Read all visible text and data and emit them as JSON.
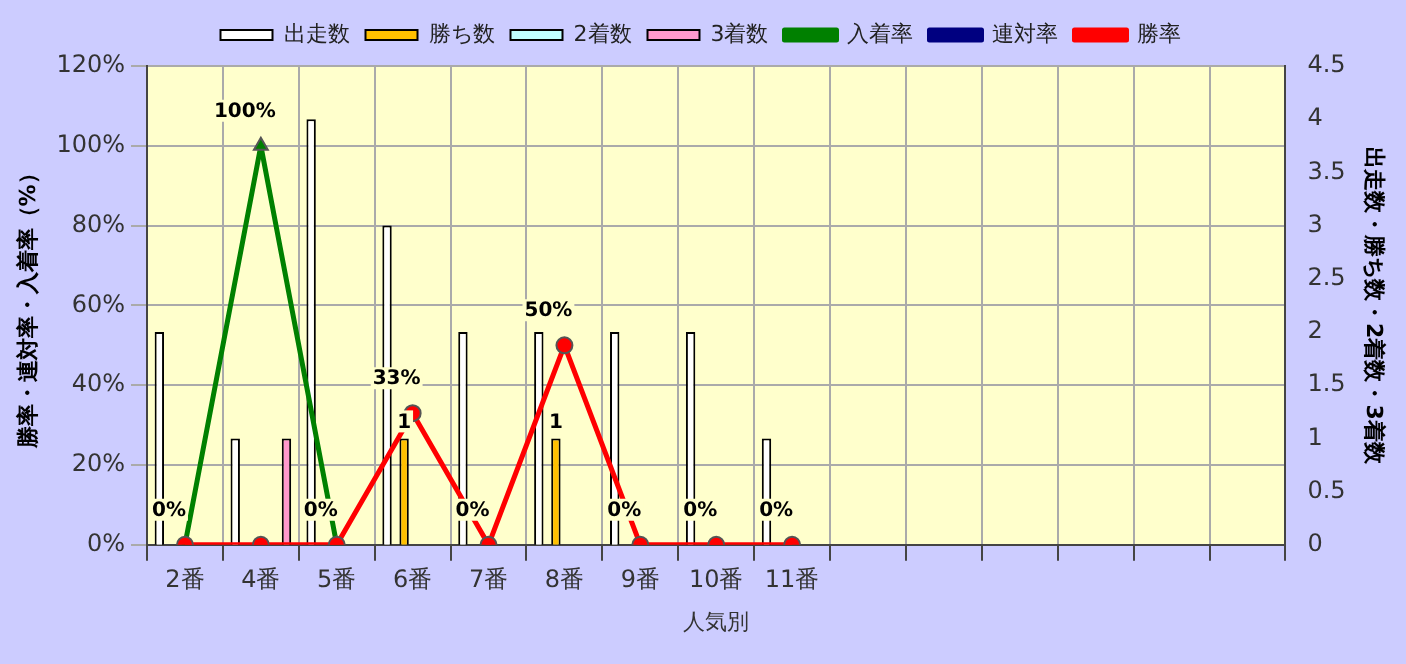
{
  "chart_data": {
    "type": "bar",
    "xlabel": "人気別",
    "ylabel": "勝率・連対率・入着率（%）",
    "y2label": "出走数・勝ち数・2着数・3着数",
    "categories": [
      "2番",
      "4番",
      "5番",
      "6番",
      "7番",
      "8番",
      "9番",
      "10番",
      "11番",
      null,
      null,
      null,
      null,
      null,
      null
    ],
    "series": [
      {
        "name": "出走数",
        "axis": "y2",
        "color": "#ffffff",
        "values": [
          2,
          1,
          4,
          3,
          2,
          2,
          2,
          2,
          1,
          null,
          null,
          null,
          null,
          null,
          null
        ]
      },
      {
        "name": "勝ち数",
        "axis": "y2",
        "color": "#ffc000",
        "values": [
          0,
          0,
          0,
          1,
          0,
          1,
          0,
          0,
          0,
          null,
          null,
          null,
          null,
          null,
          null
        ],
        "value_labels": [
          null,
          null,
          null,
          "1",
          null,
          "1",
          null,
          null,
          null,
          null,
          null,
          null,
          null,
          null,
          null
        ]
      },
      {
        "name": "2着数",
        "axis": "y2",
        "color": "#c0ffff",
        "values": [
          0,
          0,
          0,
          0,
          0,
          0,
          0,
          0,
          0,
          null,
          null,
          null,
          null,
          null,
          null
        ]
      },
      {
        "name": "3着数",
        "axis": "y2",
        "color": "#ff99cc",
        "values": [
          0,
          1,
          0,
          0,
          0,
          0,
          0,
          0,
          0,
          null,
          null,
          null,
          null,
          null,
          null
        ]
      },
      {
        "name": "入着率",
        "type": "line",
        "color": "#008000",
        "marker": "triangle",
        "values": [
          0,
          100,
          0,
          null,
          null,
          null,
          null,
          null,
          null,
          null,
          null,
          null,
          null,
          null,
          null
        ],
        "value_labels": [
          null,
          "100%",
          null,
          null,
          null,
          null,
          null,
          null,
          null,
          null,
          null,
          null,
          null,
          null,
          null
        ]
      },
      {
        "name": "連対率",
        "type": "line",
        "color": "#000080",
        "marker": "circle",
        "values": [
          null,
          null,
          null,
          null,
          null,
          null,
          null,
          null,
          null,
          null,
          null,
          null,
          null,
          null,
          null
        ]
      },
      {
        "name": "勝率",
        "type": "line",
        "color": "#ff0000",
        "marker": "circle",
        "values": [
          0,
          0,
          0,
          33,
          0,
          50,
          0,
          0,
          0,
          null,
          null,
          null,
          null,
          null,
          null
        ],
        "value_labels": [
          "0%",
          null,
          "0%",
          "33%",
          "0%",
          "50%",
          "0%",
          "0%",
          "0%",
          null,
          null,
          null,
          null,
          null,
          null
        ]
      }
    ],
    "ylim": [
      0,
      120
    ],
    "yticks": [
      {
        "value": 0,
        "label": "0%"
      },
      {
        "value": 20,
        "label": "20%"
      },
      {
        "value": 40,
        "label": "40%"
      },
      {
        "value": 60,
        "label": "60%"
      },
      {
        "value": 80,
        "label": "80%"
      },
      {
        "value": 100,
        "label": "100%"
      },
      {
        "value": 120,
        "label": "120%"
      }
    ],
    "y2lim": [
      0,
      4.5
    ],
    "y2ticks": [
      0,
      0.5,
      1,
      1.5,
      2,
      2.5,
      3,
      3.5,
      4,
      4.5
    ],
    "grid": true,
    "legend": "top",
    "line_style": "solid"
  }
}
